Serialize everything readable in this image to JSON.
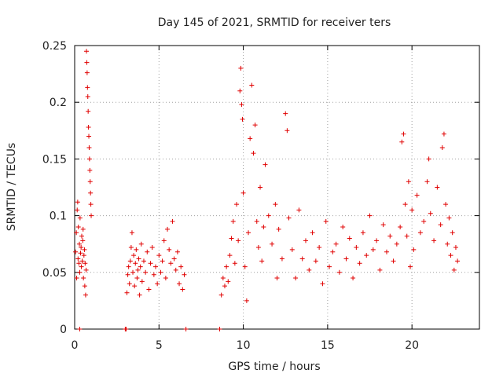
{
  "chart_data": {
    "type": "scatter",
    "title": "Day 145 of 2021, SRMTID for receiver ters",
    "xlabel": "GPS time / hours",
    "ylabel": "SRMTID / TECUs",
    "xlim": [
      0,
      24
    ],
    "ylim": [
      0,
      0.25
    ],
    "xticks": [
      0,
      5,
      10,
      15,
      20
    ],
    "xtick_labels": [
      "0",
      "5",
      "10",
      "15",
      "20"
    ],
    "yticks": [
      0,
      0.05,
      0.1,
      0.15,
      0.2,
      0.25
    ],
    "ytick_labels": [
      "0",
      "0.05",
      "0.1",
      "0.15",
      "0.2",
      "0.25"
    ],
    "grid": true,
    "marker": "+",
    "color": "#e00000",
    "series": [
      {
        "name": "SRMTID",
        "points": [
          [
            0.05,
            0.068
          ],
          [
            0.1,
            0.085
          ],
          [
            0.12,
            0.045
          ],
          [
            0.15,
            0.105
          ],
          [
            0.18,
            0.112
          ],
          [
            0.2,
            0.062
          ],
          [
            0.22,
            0.09
          ],
          [
            0.25,
            0.058
          ],
          [
            0.28,
            0.075
          ],
          [
            0.3,
            0.05
          ],
          [
            0.32,
            0.098
          ],
          [
            0.35,
            0.067
          ],
          [
            0.38,
            0.072
          ],
          [
            0.4,
            0.055
          ],
          [
            0.42,
            0.082
          ],
          [
            0.45,
            0.06
          ],
          [
            0.48,
            0.078
          ],
          [
            0.5,
            0.088
          ],
          [
            0.52,
            0.045
          ],
          [
            0.55,
            0.065
          ],
          [
            0.58,
            0.07
          ],
          [
            0.6,
            0.038
          ],
          [
            0.62,
            0.058
          ],
          [
            0.65,
            0.03
          ],
          [
            0.68,
            0.052
          ],
          [
            0.7,
            0.245
          ],
          [
            0.72,
            0.235
          ],
          [
            0.74,
            0.226
          ],
          [
            0.76,
            0.213
          ],
          [
            0.78,
            0.205
          ],
          [
            0.8,
            0.192
          ],
          [
            0.82,
            0.178
          ],
          [
            0.84,
            0.17
          ],
          [
            0.86,
            0.16
          ],
          [
            0.88,
            0.15
          ],
          [
            0.9,
            0.14
          ],
          [
            0.92,
            0.13
          ],
          [
            0.94,
            0.12
          ],
          [
            0.96,
            0.11
          ],
          [
            0.98,
            0.1
          ],
          [
            3.0,
            0.0
          ],
          [
            3.05,
            0.0
          ],
          [
            3.1,
            0.032
          ],
          [
            3.15,
            0.048
          ],
          [
            3.2,
            0.055
          ],
          [
            3.25,
            0.04
          ],
          [
            3.3,
            0.06
          ],
          [
            3.35,
            0.072
          ],
          [
            3.4,
            0.085
          ],
          [
            3.45,
            0.05
          ],
          [
            3.5,
            0.065
          ],
          [
            3.55,
            0.038
          ],
          [
            3.6,
            0.058
          ],
          [
            3.65,
            0.07
          ],
          [
            3.7,
            0.045
          ],
          [
            3.75,
            0.052
          ],
          [
            3.8,
            0.062
          ],
          [
            3.85,
            0.03
          ],
          [
            3.9,
            0.055
          ],
          [
            3.95,
            0.075
          ],
          [
            4.0,
            0.042
          ],
          [
            4.1,
            0.06
          ],
          [
            4.2,
            0.05
          ],
          [
            4.3,
            0.068
          ],
          [
            4.4,
            0.035
          ],
          [
            4.5,
            0.058
          ],
          [
            4.6,
            0.072
          ],
          [
            4.7,
            0.048
          ],
          [
            4.8,
            0.055
          ],
          [
            4.9,
            0.04
          ],
          [
            5.0,
            0.065
          ],
          [
            5.1,
            0.05
          ],
          [
            5.2,
            0.06
          ],
          [
            5.3,
            0.078
          ],
          [
            5.4,
            0.045
          ],
          [
            5.5,
            0.088
          ],
          [
            5.6,
            0.07
          ],
          [
            5.7,
            0.058
          ],
          [
            5.8,
            0.095
          ],
          [
            5.9,
            0.062
          ],
          [
            6.0,
            0.052
          ],
          [
            6.1,
            0.068
          ],
          [
            6.2,
            0.04
          ],
          [
            6.3,
            0.055
          ],
          [
            6.4,
            0.035
          ],
          [
            6.5,
            0.048
          ],
          [
            6.6,
            0.0
          ],
          [
            8.6,
            0.0
          ],
          [
            8.7,
            0.03
          ],
          [
            8.8,
            0.045
          ],
          [
            8.9,
            0.038
          ],
          [
            9.0,
            0.055
          ],
          [
            9.1,
            0.042
          ],
          [
            9.2,
            0.065
          ],
          [
            9.3,
            0.08
          ],
          [
            9.4,
            0.095
          ],
          [
            9.5,
            0.058
          ],
          [
            9.6,
            0.11
          ],
          [
            9.7,
            0.078
          ],
          [
            9.8,
            0.21
          ],
          [
            9.85,
            0.23
          ],
          [
            9.9,
            0.198
          ],
          [
            9.95,
            0.185
          ],
          [
            10.0,
            0.12
          ],
          [
            10.1,
            0.055
          ],
          [
            10.2,
            0.025
          ],
          [
            10.3,
            0.085
          ],
          [
            10.4,
            0.168
          ],
          [
            10.5,
            0.215
          ],
          [
            10.6,
            0.155
          ],
          [
            10.7,
            0.18
          ],
          [
            10.8,
            0.095
          ],
          [
            10.9,
            0.072
          ],
          [
            11.0,
            0.125
          ],
          [
            11.1,
            0.06
          ],
          [
            11.2,
            0.09
          ],
          [
            11.3,
            0.145
          ],
          [
            11.5,
            0.1
          ],
          [
            11.7,
            0.075
          ],
          [
            11.9,
            0.11
          ],
          [
            12.1,
            0.088
          ],
          [
            12.3,
            0.062
          ],
          [
            12.5,
            0.19
          ],
          [
            12.6,
            0.175
          ],
          [
            12.7,
            0.098
          ],
          [
            12.9,
            0.07
          ],
          [
            13.1,
            0.045
          ],
          [
            13.3,
            0.105
          ],
          [
            13.5,
            0.062
          ],
          [
            13.7,
            0.078
          ],
          [
            13.9,
            0.052
          ],
          [
            14.1,
            0.085
          ],
          [
            14.3,
            0.06
          ],
          [
            14.5,
            0.072
          ],
          [
            14.7,
            0.04
          ],
          [
            14.9,
            0.095
          ],
          [
            15.1,
            0.055
          ],
          [
            15.3,
            0.068
          ],
          [
            15.5,
            0.075
          ],
          [
            15.7,
            0.05
          ],
          [
            15.9,
            0.09
          ],
          [
            16.1,
            0.062
          ],
          [
            16.3,
            0.08
          ],
          [
            16.5,
            0.045
          ],
          [
            16.7,
            0.072
          ],
          [
            16.9,
            0.058
          ],
          [
            17.1,
            0.085
          ],
          [
            17.3,
            0.065
          ],
          [
            17.5,
            0.1
          ],
          [
            17.7,
            0.07
          ],
          [
            17.9,
            0.078
          ],
          [
            18.1,
            0.052
          ],
          [
            18.3,
            0.092
          ],
          [
            18.5,
            0.068
          ],
          [
            18.7,
            0.082
          ],
          [
            18.9,
            0.06
          ],
          [
            19.1,
            0.075
          ],
          [
            19.3,
            0.09
          ],
          [
            19.4,
            0.165
          ],
          [
            19.5,
            0.172
          ],
          [
            19.6,
            0.11
          ],
          [
            19.7,
            0.082
          ],
          [
            19.8,
            0.13
          ],
          [
            19.9,
            0.055
          ],
          [
            20.0,
            0.105
          ],
          [
            20.1,
            0.07
          ],
          [
            20.3,
            0.118
          ],
          [
            20.5,
            0.085
          ],
          [
            20.7,
            0.095
          ],
          [
            20.9,
            0.13
          ],
          [
            21.0,
            0.15
          ],
          [
            21.1,
            0.102
          ],
          [
            21.3,
            0.078
          ],
          [
            21.5,
            0.125
          ],
          [
            21.7,
            0.092
          ],
          [
            21.8,
            0.16
          ],
          [
            21.9,
            0.172
          ],
          [
            22.0,
            0.11
          ],
          [
            22.1,
            0.075
          ],
          [
            22.2,
            0.098
          ],
          [
            22.3,
            0.065
          ],
          [
            22.4,
            0.085
          ],
          [
            22.5,
            0.052
          ],
          [
            22.6,
            0.072
          ],
          [
            22.7,
            0.06
          ],
          [
            0.3,
            0.0
          ],
          [
            12.0,
            0.045
          ]
        ]
      }
    ]
  }
}
